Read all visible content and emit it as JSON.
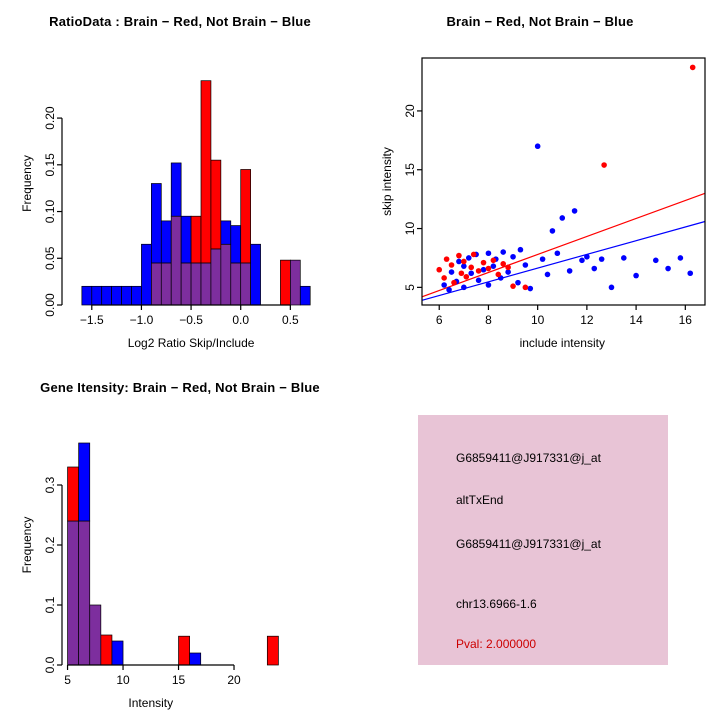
{
  "colors": {
    "red": "#FF0000",
    "blue": "#0000FF",
    "purple": "#7D2E9E",
    "pval_red": "#CC0000",
    "axis": "#000000"
  },
  "info_panel": {
    "background": "#E8C4D6",
    "lines": [
      "G6859411@J917331@j_at",
      "altTxEnd",
      "G6859411@J917331@j_at",
      "chr13.6966-1.6"
    ],
    "pval": "Pval: 2.000000"
  },
  "chart_data": [
    {
      "id": "ratio-histogram",
      "type": "bar",
      "title": "RatioData : Brain − Red, Not Brain − Blue",
      "xlabel": "Log2 Ratio Skip/Include",
      "ylabel": "Frequency",
      "xlim": [
        -1.8,
        1.0
      ],
      "ylim": [
        0,
        0.26
      ],
      "xticks": [
        -1.5,
        -1.0,
        -0.5,
        0.0,
        0.5
      ],
      "xtick_labels": [
        "−1.5",
        "−1.0",
        "−0.5",
        "0.0",
        "0.5"
      ],
      "yticks": [
        0,
        0.05,
        0.1,
        0.15,
        0.2
      ],
      "ytick_labels": [
        "0.00",
        "0.05",
        "0.10",
        "0.15",
        "0.20"
      ],
      "bin_width": 0.1,
      "legend": "Brain = red, Not Brain = blue, overlap = purple",
      "bars": [
        {
          "x": -1.6,
          "parts": [
            [
              "blue",
              0,
              0.02
            ]
          ]
        },
        {
          "x": -1.5,
          "parts": [
            [
              "blue",
              0,
              0.02
            ]
          ]
        },
        {
          "x": -1.4,
          "parts": [
            [
              "blue",
              0,
              0.02
            ]
          ]
        },
        {
          "x": -1.3,
          "parts": [
            [
              "blue",
              0,
              0.02
            ]
          ]
        },
        {
          "x": -1.2,
          "parts": [
            [
              "blue",
              0,
              0.02
            ]
          ]
        },
        {
          "x": -1.1,
          "parts": [
            [
              "blue",
              0,
              0.02
            ]
          ]
        },
        {
          "x": -1.0,
          "parts": [
            [
              "blue",
              0,
              0.065
            ]
          ]
        },
        {
          "x": -0.9,
          "parts": [
            [
              "purple",
              0,
              0.045
            ],
            [
              "blue",
              0.045,
              0.13
            ]
          ]
        },
        {
          "x": -0.8,
          "parts": [
            [
              "purple",
              0,
              0.045
            ],
            [
              "blue",
              0.045,
              0.09
            ]
          ]
        },
        {
          "x": -0.7,
          "parts": [
            [
              "purple",
              0,
              0.095
            ],
            [
              "blue",
              0.095,
              0.152
            ]
          ]
        },
        {
          "x": -0.6,
          "parts": [
            [
              "purple",
              0,
              0.045
            ],
            [
              "blue",
              0.045,
              0.095
            ]
          ]
        },
        {
          "x": -0.5,
          "parts": [
            [
              "purple",
              0,
              0.045
            ],
            [
              "red",
              0.045,
              0.095
            ]
          ]
        },
        {
          "x": -0.4,
          "parts": [
            [
              "purple",
              0,
              0.045
            ],
            [
              "red",
              0.045,
              0.24
            ]
          ]
        },
        {
          "x": -0.3,
          "parts": [
            [
              "purple",
              0,
              0.06
            ],
            [
              "red",
              0.06,
              0.155
            ]
          ]
        },
        {
          "x": -0.2,
          "parts": [
            [
              "purple",
              0,
              0.065
            ],
            [
              "blue",
              0.065,
              0.09
            ]
          ]
        },
        {
          "x": -0.1,
          "parts": [
            [
              "purple",
              0,
              0.045
            ],
            [
              "blue",
              0.045,
              0.085
            ]
          ]
        },
        {
          "x": 0.0,
          "parts": [
            [
              "purple",
              0,
              0.045
            ],
            [
              "red",
              0.045,
              0.145
            ]
          ]
        },
        {
          "x": 0.1,
          "parts": [
            [
              "blue",
              0,
              0.065
            ]
          ]
        },
        {
          "x": 0.4,
          "parts": [
            [
              "red",
              0,
              0.048
            ]
          ]
        },
        {
          "x": 0.5,
          "parts": [
            [
              "purple",
              0,
              0.048
            ]
          ]
        },
        {
          "x": 0.6,
          "parts": [
            [
              "blue",
              0,
              0.02
            ]
          ]
        }
      ]
    },
    {
      "id": "intensity-scatter",
      "type": "scatter",
      "title": "Brain − Red, Not Brain − Blue",
      "xlabel": "include intensity",
      "ylabel": "skip intensity",
      "xlim": [
        5.3,
        16.8
      ],
      "ylim": [
        3.5,
        24.5
      ],
      "xticks": [
        6,
        8,
        10,
        12,
        14,
        16
      ],
      "xtick_labels": [
        "6",
        "8",
        "10",
        "12",
        "14",
        "16"
      ],
      "yticks": [
        5,
        10,
        15,
        20
      ],
      "ytick_labels": [
        "5",
        "10",
        "15",
        "20"
      ],
      "box": true,
      "series": [
        {
          "name": "Not Brain",
          "color": "blue",
          "points": [
            [
              6.2,
              5.2
            ],
            [
              6.4,
              4.8
            ],
            [
              6.5,
              6.3
            ],
            [
              6.7,
              5.5
            ],
            [
              6.8,
              7.2
            ],
            [
              7.0,
              6.8
            ],
            [
              7.0,
              5.0
            ],
            [
              7.2,
              7.5
            ],
            [
              7.3,
              6.2
            ],
            [
              7.5,
              7.8
            ],
            [
              7.6,
              5.6
            ],
            [
              7.8,
              6.5
            ],
            [
              8.0,
              7.9
            ],
            [
              8.0,
              5.2
            ],
            [
              8.2,
              6.8
            ],
            [
              8.3,
              7.4
            ],
            [
              8.5,
              5.8
            ],
            [
              8.6,
              8.0
            ],
            [
              8.8,
              6.3
            ],
            [
              9.0,
              7.6
            ],
            [
              9.2,
              5.4
            ],
            [
              9.3,
              8.2
            ],
            [
              9.5,
              6.9
            ],
            [
              9.7,
              4.9
            ],
            [
              10.0,
              17.0
            ],
            [
              10.2,
              7.4
            ],
            [
              10.4,
              6.1
            ],
            [
              10.6,
              9.8
            ],
            [
              10.8,
              7.9
            ],
            [
              11.0,
              10.9
            ],
            [
              11.3,
              6.4
            ],
            [
              11.5,
              11.5
            ],
            [
              11.8,
              7.3
            ],
            [
              12.0,
              7.6
            ],
            [
              12.3,
              6.6
            ],
            [
              12.6,
              7.4
            ],
            [
              13.0,
              5.0
            ],
            [
              13.5,
              7.5
            ],
            [
              14.0,
              6.0
            ],
            [
              14.8,
              7.3
            ],
            [
              15.3,
              6.6
            ],
            [
              15.8,
              7.5
            ],
            [
              16.2,
              6.2
            ]
          ]
        },
        {
          "name": "Brain",
          "color": "red",
          "points": [
            [
              6.0,
              6.5
            ],
            [
              6.2,
              5.8
            ],
            [
              6.3,
              7.4
            ],
            [
              6.5,
              6.9
            ],
            [
              6.6,
              5.4
            ],
            [
              6.8,
              7.7
            ],
            [
              6.9,
              6.2
            ],
            [
              7.0,
              7.2
            ],
            [
              7.1,
              5.9
            ],
            [
              7.3,
              6.7
            ],
            [
              7.4,
              7.8
            ],
            [
              7.6,
              6.4
            ],
            [
              7.8,
              7.1
            ],
            [
              8.0,
              6.6
            ],
            [
              8.2,
              7.3
            ],
            [
              8.4,
              6.1
            ],
            [
              8.6,
              7.0
            ],
            [
              8.8,
              6.7
            ],
            [
              9.0,
              5.1
            ],
            [
              9.5,
              5.0
            ],
            [
              12.7,
              15.4
            ],
            [
              16.3,
              23.7
            ]
          ]
        }
      ],
      "lines": [
        {
          "color": "red",
          "x": [
            5.3,
            16.8
          ],
          "y": [
            4.2,
            13.0
          ]
        },
        {
          "color": "blue",
          "x": [
            5.3,
            16.8
          ],
          "y": [
            3.9,
            10.6
          ]
        }
      ]
    },
    {
      "id": "gene-intensity-histogram",
      "type": "bar",
      "title": "Gene Itensity: Brain − Red, Not Brain − Blue",
      "xlabel": "Intensity",
      "ylabel": "Frequency",
      "xlim": [
        4.5,
        30
      ],
      "ylim": [
        0,
        0.4
      ],
      "xticks": [
        5,
        10,
        15,
        20
      ],
      "xtick_labels": [
        "5",
        "10",
        "15",
        "20"
      ],
      "yticks": [
        0,
        0.1,
        0.2,
        0.3
      ],
      "ytick_labels": [
        "0.0",
        "0.1",
        "0.2",
        "0.3"
      ],
      "bin_width": 1,
      "legend": "Brain = red, Not Brain = blue, overlap = purple",
      "bars": [
        {
          "x": 5,
          "parts": [
            [
              "purple",
              0,
              0.24
            ],
            [
              "red",
              0.24,
              0.33
            ]
          ]
        },
        {
          "x": 6,
          "parts": [
            [
              "purple",
              0,
              0.24
            ],
            [
              "blue",
              0.24,
              0.37
            ]
          ]
        },
        {
          "x": 7,
          "parts": [
            [
              "purple",
              0,
              0.1
            ]
          ]
        },
        {
          "x": 8,
          "parts": [
            [
              "red",
              0,
              0.05
            ]
          ]
        },
        {
          "x": 9,
          "parts": [
            [
              "blue",
              0,
              0.04
            ]
          ]
        },
        {
          "x": 15,
          "parts": [
            [
              "red",
              0,
              0.048
            ]
          ]
        },
        {
          "x": 16,
          "parts": [
            [
              "blue",
              0,
              0.02
            ]
          ]
        },
        {
          "x": 23,
          "parts": [
            [
              "red",
              0,
              0.048
            ]
          ]
        }
      ]
    }
  ]
}
